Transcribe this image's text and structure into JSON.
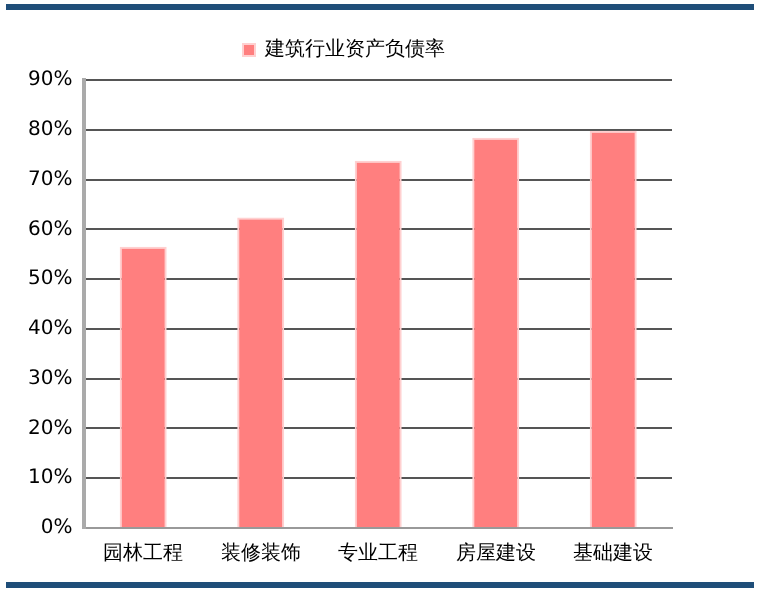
{
  "chart_data": {
    "type": "bar",
    "categories": [
      "园林工程",
      "装修装饰",
      "专业工程",
      "房屋建设",
      "基础建设"
    ],
    "series": [
      {
        "name": "建筑行业资产负债率",
        "color": "#ff7f7f",
        "values": [
          56.5,
          62.4,
          73.8,
          78.4,
          79.8
        ]
      }
    ],
    "ylim": [
      0,
      90
    ],
    "yticks": [
      {
        "value": 0,
        "label": "0%"
      },
      {
        "value": 10,
        "label": "10%"
      },
      {
        "value": 20,
        "label": "20%"
      },
      {
        "value": 30,
        "label": "30%"
      },
      {
        "value": 40,
        "label": "40%"
      },
      {
        "value": 50,
        "label": "50%"
      },
      {
        "value": 60,
        "label": "60%"
      },
      {
        "value": 70,
        "label": "70%"
      },
      {
        "value": 80,
        "label": "80%"
      },
      {
        "value": 90,
        "label": "90%"
      }
    ],
    "grid": "y",
    "legend": "top"
  }
}
